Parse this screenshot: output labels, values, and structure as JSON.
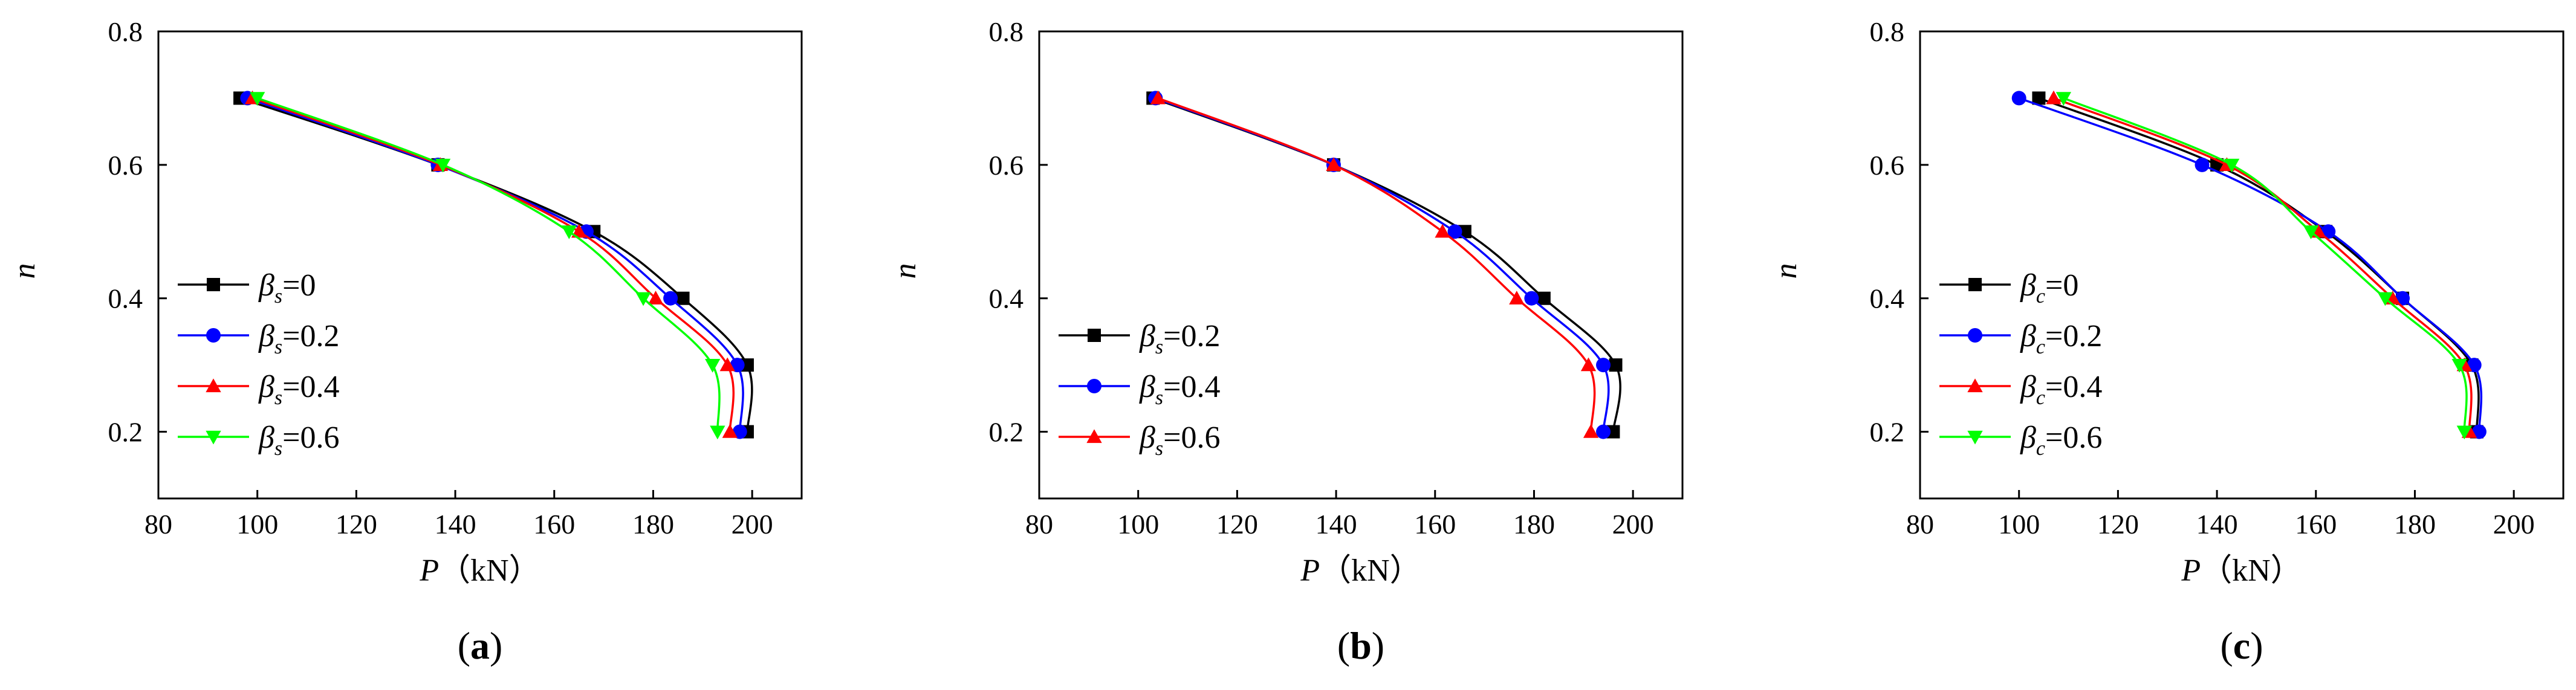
{
  "chart_data": [
    {
      "type": "line",
      "panel_label": "a",
      "xlabel_symbol": "P",
      "xlabel_unit": "（kN）",
      "ylabel": "n",
      "xlim": [
        80,
        210
      ],
      "ylim": [
        0.1,
        0.8
      ],
      "xticks": [
        80,
        100,
        120,
        140,
        160,
        180,
        200
      ],
      "yticks": [
        0.2,
        0.4,
        0.6,
        0.8
      ],
      "ytick_labels": [
        "0.2",
        "0.4",
        "0.6",
        "0.8"
      ],
      "legend_position": "lower-left",
      "series": [
        {
          "name": "β_s=0",
          "sym": "β",
          "sub": "s",
          "value": "=0",
          "color": "#000000",
          "marker": "square",
          "x": [
            96.5,
            136.5,
            168,
            186,
            199,
            199
          ],
          "y": [
            0.7,
            0.6,
            0.5,
            0.4,
            0.3,
            0.2
          ]
        },
        {
          "name": "β_s=0.2",
          "sym": "β",
          "sub": "s",
          "value": "=0.2",
          "color": "#0000ff",
          "marker": "circle",
          "x": [
            98,
            136.5,
            166.5,
            183.5,
            197,
            197.5
          ],
          "y": [
            0.7,
            0.6,
            0.5,
            0.4,
            0.3,
            0.2
          ]
        },
        {
          "name": "β_s=0.4",
          "sym": "β",
          "sub": "s",
          "value": "=0.4",
          "color": "#ff0000",
          "marker": "triangle-up",
          "x": [
            99,
            137,
            165,
            180.5,
            195,
            195.5
          ],
          "y": [
            0.7,
            0.6,
            0.5,
            0.4,
            0.3,
            0.2
          ]
        },
        {
          "name": "β_s=0.6",
          "sym": "β",
          "sub": "s",
          "value": "=0.6",
          "color": "#00ff00",
          "marker": "triangle-down",
          "x": [
            100,
            137.5,
            163,
            178,
            192,
            193
          ],
          "y": [
            0.7,
            0.6,
            0.5,
            0.4,
            0.3,
            0.2
          ]
        }
      ]
    },
    {
      "type": "line",
      "panel_label": "b",
      "xlabel_symbol": "P",
      "xlabel_unit": "（kN）",
      "ylabel": "n",
      "xlim": [
        80,
        210
      ],
      "ylim": [
        0.1,
        0.8
      ],
      "xticks": [
        80,
        100,
        120,
        140,
        160,
        180,
        200
      ],
      "yticks": [
        0.2,
        0.4,
        0.6,
        0.8
      ],
      "ytick_labels": [
        "0.2",
        "0.4",
        "0.6",
        "0.8"
      ],
      "legend_position": "lower-left",
      "series": [
        {
          "name": "β_s=0.2",
          "sym": "β",
          "sub": "s",
          "value": "=0.2",
          "color": "#000000",
          "marker": "square",
          "x": [
            103,
            139.5,
            166,
            182,
            196.5,
            196
          ],
          "y": [
            0.7,
            0.6,
            0.5,
            0.4,
            0.3,
            0.2
          ]
        },
        {
          "name": "β_s=0.4",
          "sym": "β",
          "sub": "s",
          "value": "=0.4",
          "color": "#0000ff",
          "marker": "circle",
          "x": [
            103.5,
            139.5,
            164,
            179.5,
            194,
            194
          ],
          "y": [
            0.7,
            0.6,
            0.5,
            0.4,
            0.3,
            0.2
          ]
        },
        {
          "name": "β_s=0.6",
          "sym": "β",
          "sub": "s",
          "value": "=0.6",
          "color": "#ff0000",
          "marker": "triangle-up",
          "x": [
            104,
            139.5,
            161.5,
            176.5,
            191,
            191.5
          ],
          "y": [
            0.7,
            0.6,
            0.5,
            0.4,
            0.3,
            0.2
          ]
        }
      ]
    },
    {
      "type": "line",
      "panel_label": "c",
      "xlabel_symbol": "P",
      "xlabel_unit": "（kN）",
      "ylabel": "n",
      "xlim": [
        80,
        210
      ],
      "ylim": [
        0.1,
        0.8
      ],
      "xticks": [
        80,
        100,
        120,
        140,
        160,
        180,
        200
      ],
      "yticks": [
        0.2,
        0.4,
        0.6,
        0.8
      ],
      "ytick_labels": [
        "0.2",
        "0.4",
        "0.6",
        "0.8"
      ],
      "legend_position": "lower-left",
      "series": [
        {
          "name": "β_c=0",
          "sym": "β",
          "sub": "c",
          "value": "=0",
          "color": "#000000",
          "marker": "square",
          "x": [
            104,
            140,
            162,
            177.5,
            191.5,
            192.5
          ],
          "y": [
            0.7,
            0.6,
            0.5,
            0.4,
            0.3,
            0.2
          ]
        },
        {
          "name": "β_c=0.2",
          "sym": "β",
          "sub": "c",
          "value": "=0.2",
          "color": "#0000ff",
          "marker": "circle",
          "x": [
            100,
            137,
            162.5,
            177.5,
            192,
            193
          ],
          "y": [
            0.7,
            0.6,
            0.5,
            0.4,
            0.3,
            0.2
          ]
        },
        {
          "name": "β_c=0.4",
          "sym": "β",
          "sub": "c",
          "value": "=0.4",
          "color": "#ff0000",
          "marker": "triangle-up",
          "x": [
            107,
            142,
            160.5,
            175.5,
            190,
            191
          ],
          "y": [
            0.7,
            0.6,
            0.5,
            0.4,
            0.3,
            0.2
          ]
        },
        {
          "name": "β_c=0.6",
          "sym": "β",
          "sub": "c",
          "value": "=0.6",
          "color": "#00ff00",
          "marker": "triangle-down",
          "x": [
            109,
            143,
            159,
            174,
            189,
            190
          ],
          "y": [
            0.7,
            0.6,
            0.5,
            0.4,
            0.3,
            0.2
          ]
        }
      ]
    }
  ]
}
